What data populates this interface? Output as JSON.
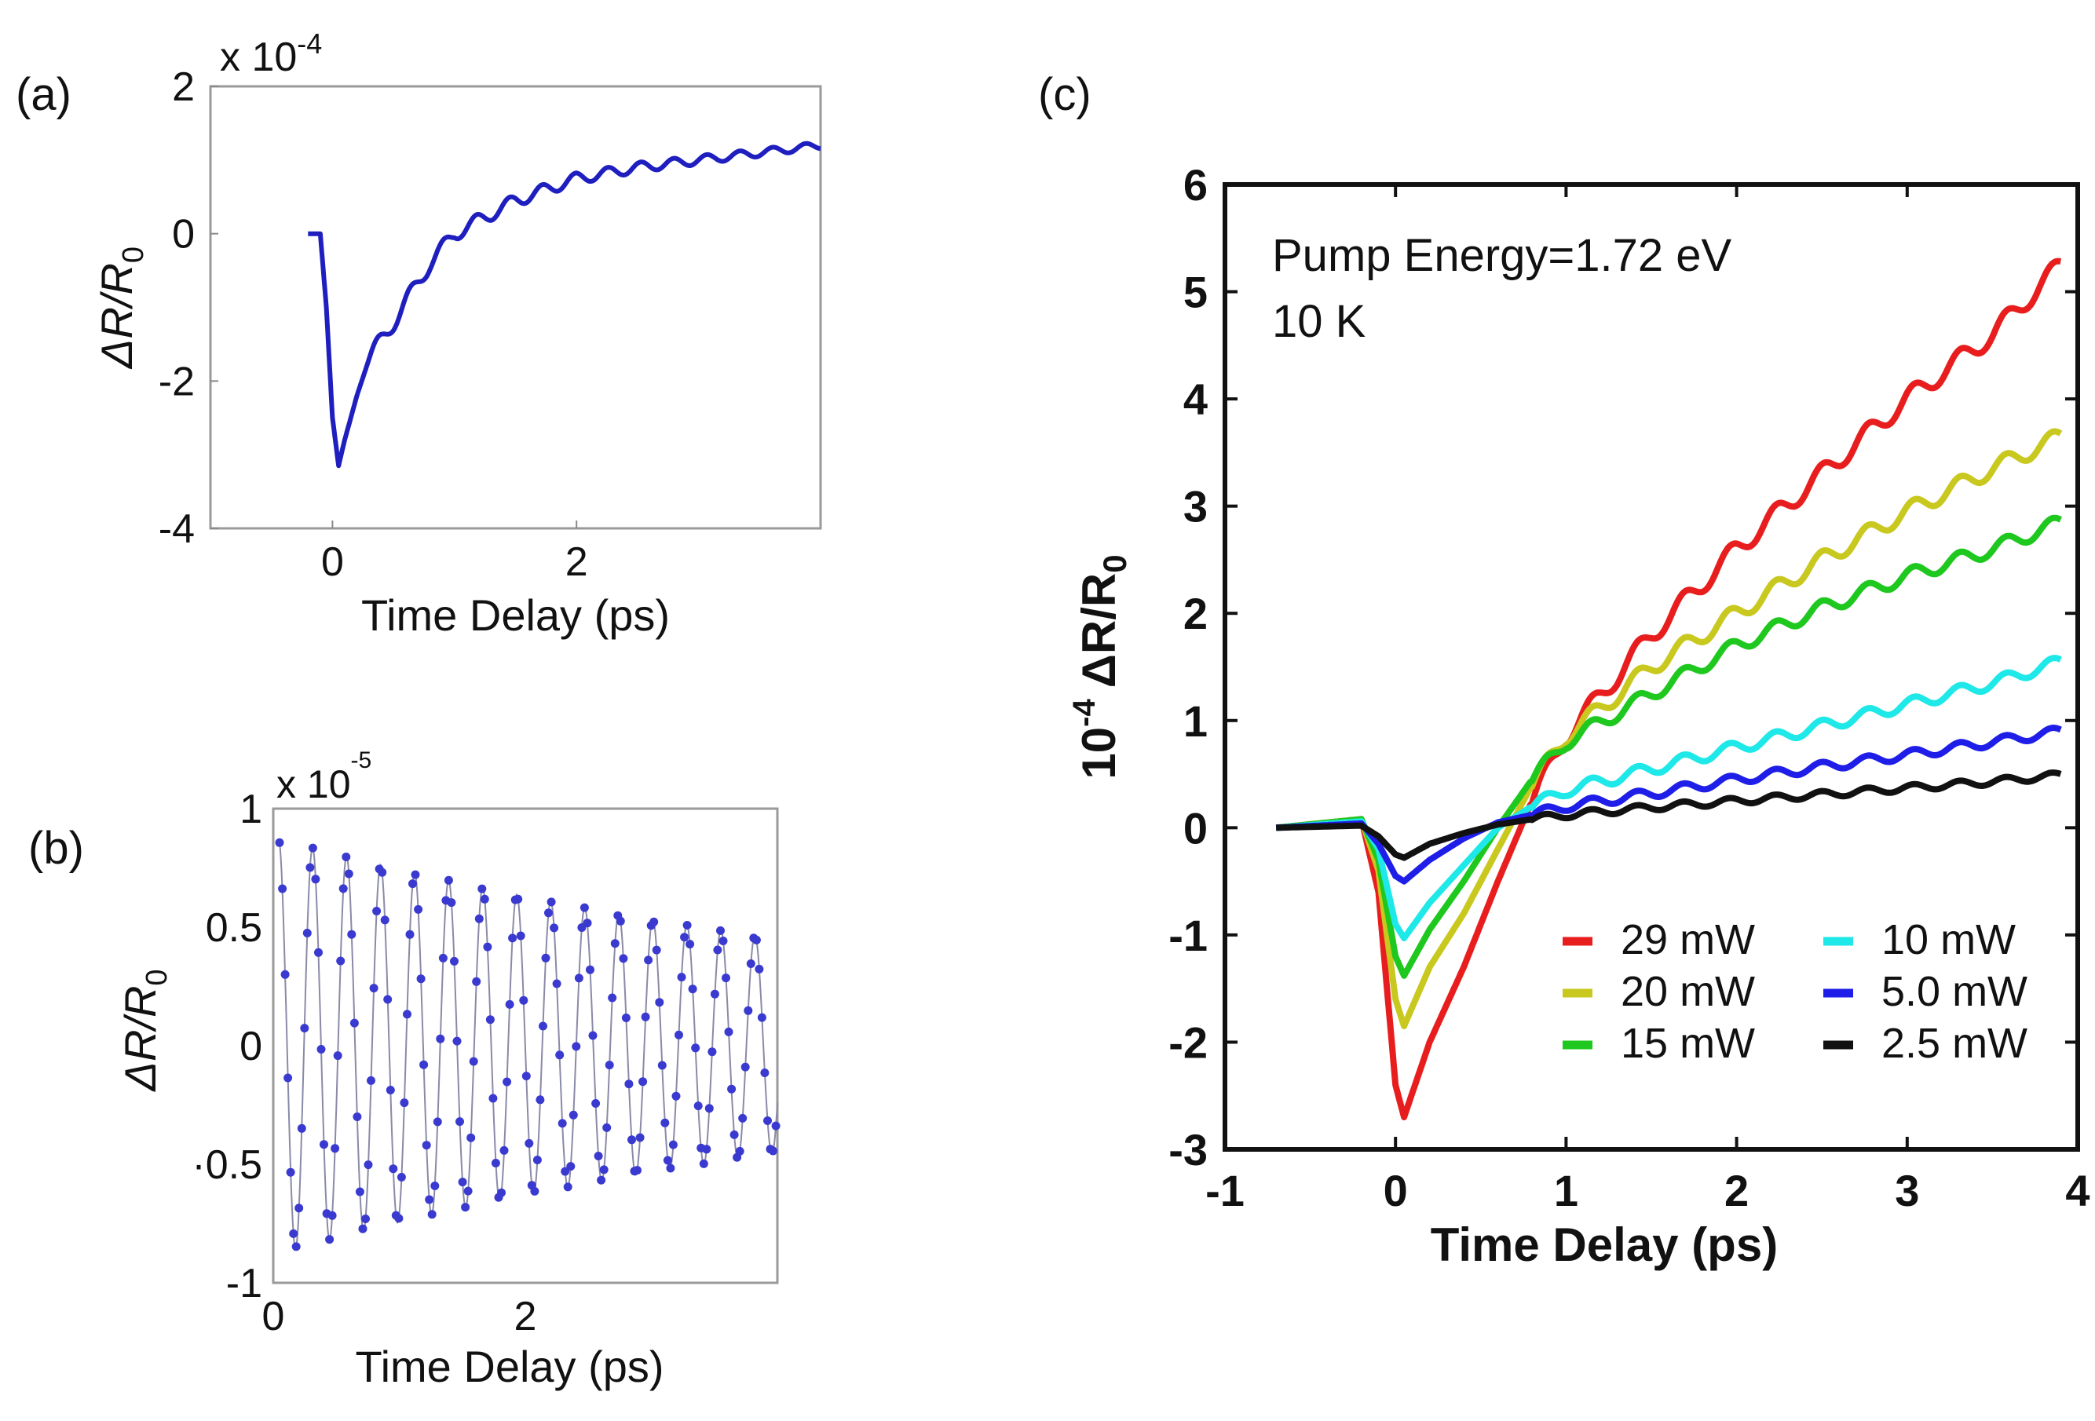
{
  "chart_data": [
    {
      "panel_label": "(a)",
      "type": "line",
      "xlabel": "Time Delay (ps)",
      "ylabel_main": "ΔR/R",
      "ylabel_sub": "0",
      "exponent_base": "x 10",
      "exponent_power": "-4",
      "xlim": [
        -1,
        4
      ],
      "ylim": [
        -4,
        2
      ],
      "xticks": [
        0,
        2
      ],
      "xtick_labels": [
        "0",
        "2"
      ],
      "yticks": [
        -4,
        -2,
        0,
        2
      ],
      "ytick_labels": [
        "-4",
        "-2",
        "0",
        "2"
      ],
      "color": "#1f1fbf",
      "series": [
        {
          "name": "trace",
          "x": [
            -0.2,
            -0.1,
            -0.05,
            0.0,
            0.05,
            0.1,
            0.2,
            0.3,
            0.5,
            0.8,
            1.0,
            1.5,
            2.0,
            2.5,
            3.0,
            3.5,
            4.0
          ],
          "y": [
            0.0,
            0.0,
            -1.0,
            -2.5,
            -3.15,
            -2.8,
            -2.2,
            -1.7,
            -1.2,
            -0.4,
            0.0,
            0.45,
            0.75,
            0.9,
            1.0,
            1.1,
            1.2
          ],
          "oscillation": {
            "amplitude": 0.12,
            "period_ps": 0.27,
            "decay_ps": 4.0
          }
        }
      ]
    },
    {
      "panel_label": "(b)",
      "type": "scatter",
      "xlabel": "Time Delay (ps)",
      "ylabel_main": "ΔR/R",
      "ylabel_sub": "0",
      "exponent_base": "x 10",
      "exponent_power": "-5",
      "xlim": [
        0,
        4
      ],
      "ylim": [
        -1,
        1
      ],
      "xticks": [
        0,
        2
      ],
      "xtick_labels": [
        "0",
        "2"
      ],
      "yticks": [
        -1,
        -0.5,
        0,
        0.5,
        1
      ],
      "ytick_labels": [
        "-1",
        "·0.5",
        "0",
        "0.5",
        "1"
      ],
      "color": "#3a3ad0",
      "series": [
        {
          "name": "oscillation",
          "model": {
            "amplitude": 0.88,
            "period_ps": 0.27,
            "decay_ps": 6.0,
            "phase": 0.6
          },
          "x_range": [
            0.05,
            4.0
          ]
        }
      ]
    },
    {
      "panel_label": "(c)",
      "type": "line",
      "xlabel": "Time Delay (ps)",
      "ylabel_main": "ΔR/R",
      "ylabel_sub": "0",
      "ylabel_prefix": "10",
      "ylabel_power": "-4",
      "xlim": [
        -1,
        4
      ],
      "ylim": [
        -3,
        6
      ],
      "xticks": [
        -1,
        0,
        1,
        2,
        3,
        4
      ],
      "xtick_labels": [
        "-1",
        "0",
        "1",
        "2",
        "3",
        "4"
      ],
      "yticks": [
        -3,
        -2,
        -1,
        0,
        1,
        2,
        3,
        4,
        5,
        6
      ],
      "ytick_labels": [
        "-3",
        "-2",
        "-1",
        "0",
        "1",
        "2",
        "3",
        "4",
        "5",
        "6"
      ],
      "annotations": [
        "Pump Energy=1.72 eV",
        "10 K"
      ],
      "legend_position": "bottom-right",
      "series": [
        {
          "name": "29 mW",
          "color": "#e81e1e",
          "x": [
            -0.7,
            -0.2,
            -0.1,
            0.0,
            0.05,
            0.2,
            0.4,
            0.6,
            0.8,
            1.0,
            1.5,
            2.0,
            2.5,
            3.0,
            3.5,
            3.9
          ],
          "y": [
            0.0,
            0.08,
            -0.6,
            -2.4,
            -2.7,
            -2.0,
            -1.3,
            -0.5,
            0.25,
            0.85,
            1.8,
            2.6,
            3.3,
            4.0,
            4.6,
            5.25
          ]
        },
        {
          "name": "20 mW",
          "color": "#c8c81e",
          "x": [
            -0.7,
            -0.2,
            -0.1,
            0.0,
            0.05,
            0.2,
            0.4,
            0.6,
            0.8,
            1.0,
            1.5,
            2.0,
            2.5,
            3.0,
            3.5,
            3.9
          ],
          "y": [
            0.0,
            0.08,
            -0.4,
            -1.6,
            -1.85,
            -1.3,
            -0.8,
            -0.2,
            0.4,
            0.85,
            1.5,
            2.0,
            2.5,
            2.95,
            3.35,
            3.65
          ]
        },
        {
          "name": "15 mW",
          "color": "#1ec81e",
          "x": [
            -0.7,
            -0.2,
            -0.1,
            0.0,
            0.05,
            0.2,
            0.4,
            0.6,
            0.8,
            1.0,
            1.5,
            2.0,
            2.5,
            3.0,
            3.5,
            3.9
          ],
          "y": [
            0.0,
            0.08,
            -0.3,
            -1.2,
            -1.38,
            -0.95,
            -0.5,
            0.0,
            0.45,
            0.8,
            1.25,
            1.7,
            2.05,
            2.35,
            2.6,
            2.85
          ]
        },
        {
          "name": "10 mW",
          "color": "#1ee8e8",
          "x": [
            -0.7,
            -0.2,
            -0.1,
            0.0,
            0.05,
            0.2,
            0.4,
            0.6,
            0.8,
            1.0,
            1.5,
            2.0,
            2.5,
            3.0,
            3.5,
            3.9
          ],
          "y": [
            0.0,
            0.06,
            -0.2,
            -0.9,
            -1.03,
            -0.7,
            -0.35,
            0.0,
            0.2,
            0.35,
            0.55,
            0.75,
            0.95,
            1.15,
            1.35,
            1.55
          ]
        },
        {
          "name": "5.0 mW",
          "color": "#1e1ee8",
          "x": [
            -0.7,
            -0.2,
            -0.1,
            0.0,
            0.05,
            0.2,
            0.4,
            0.6,
            0.8,
            1.0,
            1.5,
            2.0,
            2.5,
            3.0,
            3.5,
            3.9
          ],
          "y": [
            0.0,
            0.04,
            -0.15,
            -0.45,
            -0.5,
            -0.3,
            -0.1,
            0.05,
            0.12,
            0.2,
            0.32,
            0.45,
            0.57,
            0.68,
            0.8,
            0.9
          ]
        },
        {
          "name": "2.5 mW",
          "color": "#111111",
          "x": [
            -0.7,
            -0.2,
            -0.1,
            0.0,
            0.05,
            0.2,
            0.4,
            0.6,
            0.8,
            1.0,
            1.5,
            2.0,
            2.5,
            3.0,
            3.5,
            3.9
          ],
          "y": [
            0.0,
            0.02,
            -0.08,
            -0.25,
            -0.28,
            -0.15,
            -0.05,
            0.03,
            0.08,
            0.12,
            0.19,
            0.25,
            0.31,
            0.37,
            0.43,
            0.49
          ]
        }
      ]
    }
  ]
}
